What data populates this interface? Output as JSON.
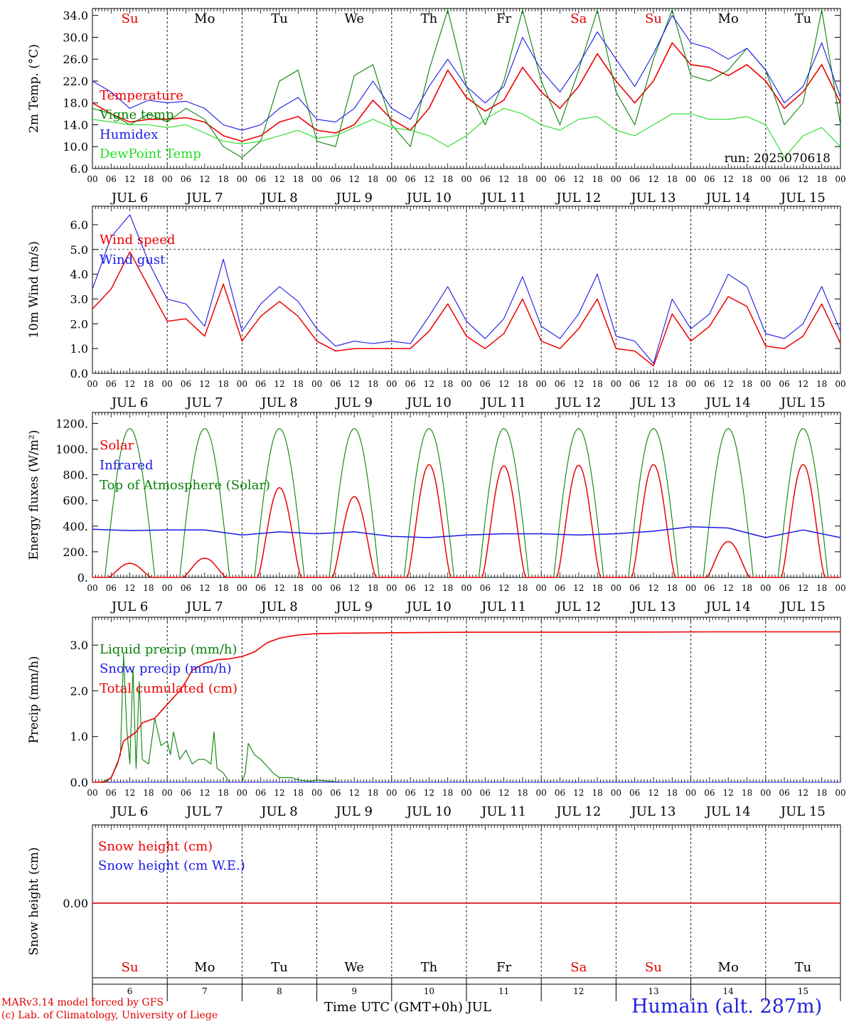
{
  "run_label": "run: 2025070618",
  "footer": {
    "credit_line1": "MARv3.14 model forced by GFS",
    "credit_line2": "(c) Lab. of Climatology, University of Liege",
    "time_axis_label": "Time UTC (GMT+0h) JUL",
    "station": "Humain (alt. 287m)"
  },
  "hour_ticks": [
    "00",
    "06",
    "12",
    "18"
  ],
  "end_tick": "00",
  "day_dates": [
    "JUL  6",
    "JUL  7",
    "JUL  8",
    "JUL  9",
    "JUL 10",
    "JUL 11",
    "JUL 12",
    "JUL 13",
    "JUL 14",
    "JUL 15"
  ],
  "weekdays": [
    "Su",
    "Mo",
    "Tu",
    "We",
    "Th",
    "Fr",
    "Sa",
    "Su",
    "Mo",
    "Tu"
  ],
  "weekday_colors": [
    "#e00000",
    "#000000",
    "#000000",
    "#000000",
    "#000000",
    "#000000",
    "#e00000",
    "#e00000",
    "#000000",
    "#000000"
  ],
  "day_numbers": [
    "6",
    "7",
    "8",
    "9",
    "10",
    "11",
    "12",
    "13",
    "14",
    "15"
  ],
  "colors": {
    "red": "#ee0000",
    "blue": "#1a1ae6",
    "green": "#0a820a",
    "lightgreen": "#22dd22"
  },
  "chart_data": [
    {
      "type": "line",
      "ylabel": "2m Temp. (°C)",
      "ylim": [
        6,
        35
      ],
      "yticks": [
        "6.0",
        "10.0",
        "14.0",
        "18.0",
        "22.0",
        "26.0",
        "30.0",
        "34.0"
      ],
      "x_unit": "hours since JUL 6 00 UTC",
      "xlim": [
        0,
        240
      ],
      "series": [
        {
          "name": "Temperature",
          "color": "#ee0000",
          "x": [
            0,
            6,
            12,
            18,
            24,
            30,
            36,
            42,
            48,
            54,
            60,
            66,
            72,
            78,
            84,
            90,
            96,
            102,
            108,
            114,
            120,
            126,
            132,
            138,
            144,
            150,
            156,
            162,
            168,
            174,
            180,
            186,
            192,
            198,
            204,
            210,
            216,
            222,
            228,
            234,
            240
          ],
          "y": [
            18,
            16,
            14.5,
            15,
            15,
            15.3,
            14.5,
            12,
            11,
            12,
            14.5,
            15.5,
            13,
            12.5,
            14,
            18.5,
            15,
            13,
            17,
            24,
            19,
            16.5,
            18.5,
            24.5,
            20,
            17,
            21,
            27,
            22,
            18,
            22,
            29,
            25,
            24.5,
            23,
            25,
            22,
            17,
            20,
            25,
            18
          ]
        },
        {
          "name": "Vigne temp",
          "color": "#0a820a",
          "x": [
            0,
            6,
            12,
            18,
            24,
            30,
            36,
            42,
            48,
            54,
            60,
            66,
            72,
            78,
            84,
            90,
            96,
            102,
            108,
            114,
            120,
            126,
            132,
            138,
            144,
            150,
            156,
            162,
            168,
            174,
            180,
            186,
            192,
            198,
            204,
            210,
            216,
            222,
            228,
            234,
            240
          ],
          "y": [
            17,
            16,
            14,
            16,
            14.5,
            17,
            15,
            10,
            8,
            11,
            22,
            24,
            11,
            10,
            23,
            25,
            14,
            10,
            24,
            35,
            21,
            14,
            22,
            35,
            22,
            14,
            24,
            35,
            20,
            14,
            26,
            35,
            23,
            22,
            24,
            28,
            24,
            14,
            18,
            35,
            14
          ]
        },
        {
          "name": "Humidex",
          "color": "#1a1ae6",
          "x": [
            0,
            6,
            12,
            18,
            24,
            30,
            36,
            42,
            48,
            54,
            60,
            66,
            72,
            78,
            84,
            90,
            96,
            102,
            108,
            114,
            120,
            126,
            132,
            138,
            144,
            150,
            156,
            162,
            168,
            174,
            180,
            186,
            192,
            198,
            204,
            210,
            216,
            222,
            228,
            234,
            240
          ],
          "y": [
            22,
            20,
            17,
            18.5,
            18,
            18.3,
            17,
            14,
            13,
            14,
            17,
            19,
            15,
            14.5,
            17,
            22,
            17,
            15,
            21,
            26,
            21,
            18,
            21,
            30,
            24,
            20,
            25,
            31,
            26,
            21,
            27,
            34,
            29,
            28,
            26,
            28,
            24,
            18,
            21,
            29,
            19
          ]
        },
        {
          "name": "DewPoint Temp",
          "color": "#22dd22",
          "x": [
            0,
            6,
            12,
            18,
            24,
            30,
            36,
            42,
            48,
            54,
            60,
            66,
            72,
            78,
            84,
            90,
            96,
            102,
            108,
            114,
            120,
            126,
            132,
            138,
            144,
            150,
            156,
            162,
            168,
            174,
            180,
            186,
            192,
            198,
            204,
            210,
            216,
            222,
            228,
            234,
            240
          ],
          "y": [
            15,
            14.5,
            14,
            14,
            13.5,
            14,
            12.5,
            11,
            10.5,
            11,
            12,
            13,
            11.5,
            12,
            13.5,
            15,
            13.5,
            13,
            12,
            10,
            12,
            15,
            17,
            16,
            14,
            13,
            15,
            15.5,
            13,
            12,
            14,
            16,
            16,
            15,
            15,
            15.5,
            14,
            8,
            12,
            13.5,
            10
          ]
        }
      ]
    },
    {
      "type": "line",
      "ylabel": "10m Wind (m/s)",
      "ylim": [
        0,
        6.6
      ],
      "yticks": [
        "0.0",
        "1.0",
        "2.0",
        "3.0",
        "4.0",
        "5.0",
        "6.0"
      ],
      "x_unit": "hours since JUL 6 00 UTC",
      "xlim": [
        0,
        240
      ],
      "series": [
        {
          "name": "Wind speed",
          "color": "#ee0000",
          "x": [
            0,
            6,
            12,
            18,
            24,
            30,
            36,
            42,
            48,
            54,
            60,
            66,
            72,
            78,
            84,
            90,
            96,
            102,
            108,
            114,
            120,
            126,
            132,
            138,
            144,
            150,
            156,
            162,
            168,
            174,
            180,
            186,
            192,
            198,
            204,
            210,
            216,
            222,
            228,
            234,
            240
          ],
          "y": [
            2.6,
            3.4,
            4.9,
            3.5,
            2.1,
            2.2,
            1.5,
            3.6,
            1.3,
            2.3,
            2.9,
            2.3,
            1.3,
            0.9,
            1.0,
            1.0,
            1.0,
            1.0,
            1.7,
            2.8,
            1.5,
            1.0,
            1.6,
            3.0,
            1.3,
            1.0,
            1.8,
            3.0,
            1.0,
            0.9,
            0.3,
            2.4,
            1.3,
            1.9,
            3.1,
            2.7,
            1.1,
            1.0,
            1.5,
            2.8,
            1.2
          ]
        },
        {
          "name": "Wind gust",
          "color": "#1a1ae6",
          "x": [
            0,
            6,
            12,
            18,
            24,
            30,
            36,
            42,
            48,
            54,
            60,
            66,
            72,
            78,
            84,
            90,
            96,
            102,
            108,
            114,
            120,
            126,
            132,
            138,
            144,
            150,
            156,
            162,
            168,
            174,
            180,
            186,
            192,
            198,
            204,
            210,
            216,
            222,
            228,
            234,
            240
          ],
          "y": [
            3.4,
            5.5,
            6.4,
            4.5,
            3.0,
            2.8,
            1.9,
            4.6,
            1.7,
            2.8,
            3.5,
            2.9,
            1.8,
            1.1,
            1.3,
            1.2,
            1.3,
            1.2,
            2.3,
            3.5,
            2.1,
            1.4,
            2.2,
            3.9,
            1.9,
            1.4,
            2.4,
            4.0,
            1.5,
            1.3,
            0.4,
            3.0,
            1.8,
            2.4,
            4.0,
            3.5,
            1.6,
            1.4,
            2.0,
            3.5,
            1.7
          ]
        }
      ]
    },
    {
      "type": "line",
      "ylabel": "Energy fluxes (W/m²)",
      "ylim": [
        0,
        1230
      ],
      "yticks": [
        "0.",
        "200.",
        "400.",
        "600.",
        "800.",
        "1000.",
        "1200."
      ],
      "x_unit": "hours since JUL 6 00 UTC",
      "xlim": [
        0,
        240
      ],
      "series": [
        {
          "name": "Solar",
          "color": "#ee0000",
          "peaks": [
            110,
            150,
            700,
            630,
            880,
            870,
            875,
            880,
            280,
            880
          ]
        },
        {
          "name": "Infrared",
          "color": "#1a1ae6",
          "x": [
            0,
            12,
            24,
            36,
            48,
            60,
            72,
            84,
            96,
            108,
            120,
            132,
            144,
            156,
            168,
            180,
            192,
            204,
            216,
            228,
            240
          ],
          "y": [
            375,
            365,
            370,
            370,
            330,
            355,
            340,
            355,
            320,
            310,
            330,
            340,
            340,
            330,
            340,
            360,
            395,
            385,
            310,
            370,
            310
          ]
        },
        {
          "name": "Top of Atmosphere (Solar)",
          "color": "#0a820a",
          "peak": 1160
        }
      ]
    },
    {
      "type": "line",
      "ylabel": "Precip (mm/h)",
      "ylim": [
        0,
        3.5
      ],
      "yticks": [
        "0.0",
        "1.0",
        "2.0",
        "3.0"
      ],
      "x_unit": "hours since JUL 6 00 UTC",
      "xlim": [
        0,
        240
      ],
      "series": [
        {
          "name": "Liquid precip (mm/h)",
          "color": "#0a820a",
          "x": [
            0,
            3,
            6,
            9,
            10,
            11,
            12,
            13,
            14,
            15,
            16,
            18,
            20,
            22,
            24,
            25,
            26,
            28,
            30,
            32,
            34,
            36,
            38,
            39,
            40,
            42,
            44,
            46,
            48,
            49,
            50,
            52,
            54,
            56,
            58,
            60,
            64,
            66,
            70,
            72,
            76,
            80,
            96,
            120,
            160,
            180,
            200,
            240
          ],
          "y": [
            0,
            0,
            0.1,
            0.6,
            2.8,
            1.2,
            0.4,
            2.5,
            0.3,
            2.2,
            0.5,
            0.4,
            1.4,
            0.8,
            0.9,
            0.6,
            1.1,
            0.5,
            0.7,
            0.4,
            0.5,
            0.5,
            0.4,
            1.1,
            0.3,
            0.2,
            0,
            0,
            0,
            0.2,
            0.85,
            0.6,
            0.5,
            0.35,
            0.2,
            0.1,
            0.1,
            0.05,
            0.02,
            0.05,
            0.02,
            0,
            0,
            0,
            0,
            0,
            0,
            0
          ]
        },
        {
          "name": "Snow precip (mm/h)",
          "color": "#1a1ae6",
          "x": [
            0,
            240
          ],
          "y": [
            0,
            0
          ]
        },
        {
          "name": "Total cumulated (cm)",
          "color": "#ee0000",
          "x": [
            0,
            4,
            6,
            8,
            10,
            12,
            14,
            16,
            18,
            20,
            24,
            28,
            30,
            32,
            36,
            40,
            44,
            48,
            50,
            52,
            54,
            56,
            60,
            64,
            66,
            70,
            72,
            80,
            96,
            120,
            160,
            200,
            240
          ],
          "y": [
            0,
            0,
            0.1,
            0.4,
            0.9,
            1.0,
            1.1,
            1.3,
            1.35,
            1.4,
            1.7,
            2.0,
            2.2,
            2.45,
            2.6,
            2.68,
            2.7,
            2.75,
            2.8,
            2.85,
            2.95,
            3.05,
            3.15,
            3.2,
            3.22,
            3.24,
            3.25,
            3.26,
            3.27,
            3.28,
            3.28,
            3.29,
            3.29
          ]
        }
      ]
    },
    {
      "type": "line",
      "ylabel": "Snow height (cm)",
      "yticks": [
        "0.00"
      ],
      "x_unit": "hours since JUL 6 00 UTC",
      "xlim": [
        0,
        240
      ],
      "series": [
        {
          "name": "Snow height (cm)",
          "color": "#ee0000",
          "x": [
            0,
            240
          ],
          "y": [
            0,
            0
          ]
        },
        {
          "name": "Snow height (cm W.E.)",
          "color": "#1a1ae6",
          "x": [
            0,
            240
          ],
          "y": [
            0,
            0
          ]
        }
      ]
    }
  ]
}
